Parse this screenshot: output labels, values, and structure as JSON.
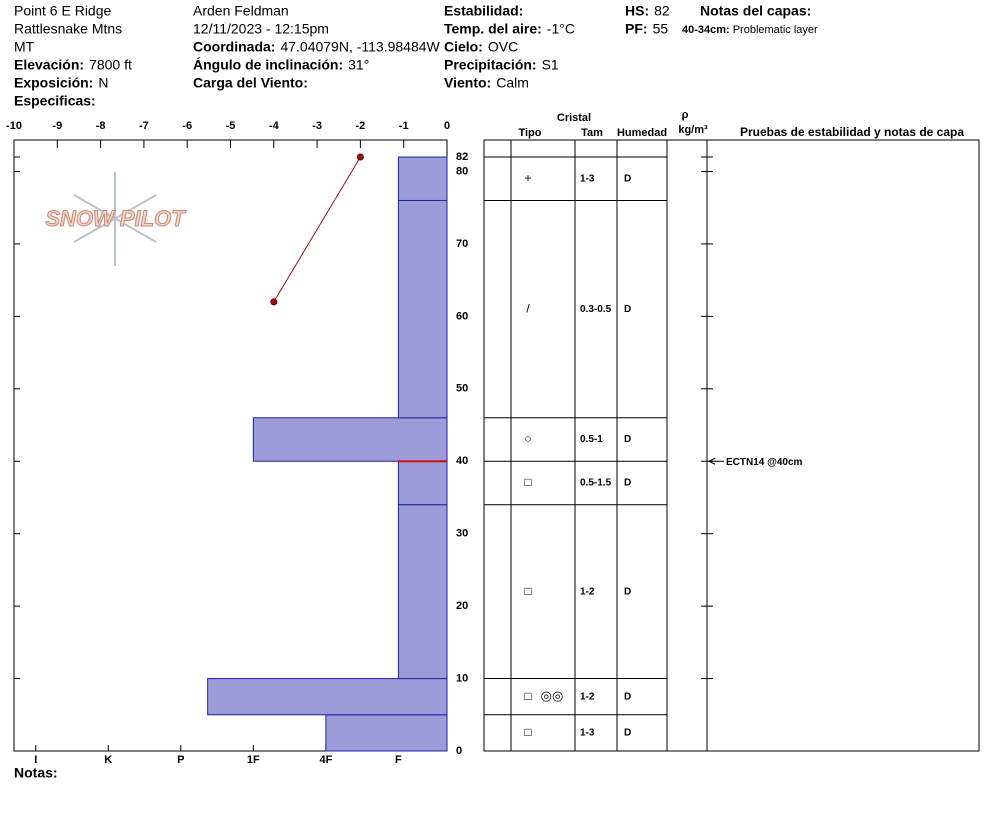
{
  "header": {
    "location": "Point 6 E Ridge",
    "range": "Rattlesnake Mtns",
    "state": "MT",
    "elevation": {
      "label": "Elevación:",
      "value": "7800 ft"
    },
    "aspect": {
      "label": "Exposición:",
      "value": "N"
    },
    "specifics": {
      "label": "Especificas:"
    },
    "observer": "Arden Feldman",
    "datetime": "12/11/2023 - 12:15pm",
    "coordinates": {
      "label": "Coordinada:",
      "value": "47.04079N, -113.98484W"
    },
    "slope": {
      "label": "Ángulo de inclinación:",
      "value": "31°"
    },
    "wind_loading": {
      "label": "Carga del Viento:"
    },
    "stability": {
      "label": "Estabilidad:"
    },
    "air_temp": {
      "label": "Temp. del aire:",
      "value": "-1°C"
    },
    "sky": {
      "label": "Cielo:",
      "value": "OVC"
    },
    "precip": {
      "label": "Precipitación:",
      "value": "S1"
    },
    "wind": {
      "label": "Viento:",
      "value": "Calm"
    },
    "hs": {
      "label": "HS:",
      "value": 82
    },
    "pf": {
      "label": "PF:",
      "value": 55
    },
    "layer_notes": {
      "label": "Notas del capas:",
      "items": [
        {
          "label": "40-34cm:",
          "value": "Problematic layer"
        }
      ]
    }
  },
  "logo": "SNOW PILOT",
  "notes_label": "Notas:",
  "chart_data": {
    "type": "snow-profile",
    "ylim": [
      0,
      82
    ],
    "yticks": [
      0,
      10,
      20,
      30,
      40,
      50,
      60,
      70,
      80,
      82
    ],
    "temperature_xlim": [
      -10,
      0
    ],
    "temperature_xticks": [
      -10,
      -9,
      -8,
      -7,
      -6,
      -5,
      -4,
      -3,
      -2,
      -1,
      0
    ],
    "temperature_profile": {
      "color": "#a01010",
      "depth": [
        82,
        62
      ],
      "values": [
        -2,
        -4
      ]
    },
    "hardness_xlim": [
      0.33,
      6.3
    ],
    "hardness_ticks": [
      {
        "value": 6,
        "label": "I"
      },
      {
        "value": 5,
        "label": "K"
      },
      {
        "value": 4,
        "label": "P"
      },
      {
        "value": 3,
        "label": "1F"
      },
      {
        "value": 2,
        "label": "4F"
      },
      {
        "value": 1,
        "label": "F"
      }
    ],
    "hardness_color": "#9c9cd8",
    "layers": [
      {
        "bottom": 0,
        "top": 5,
        "hardness": 2,
        "grain": "□",
        "size": "1-3",
        "moisture": "D"
      },
      {
        "bottom": 5,
        "top": 10,
        "hardness": 3.63,
        "grain": "□",
        "grain_secondary": "◎◎",
        "size": "1-2",
        "moisture": "D"
      },
      {
        "bottom": 10,
        "top": 34,
        "hardness": 1,
        "grain": "□",
        "size": "1-2",
        "moisture": "D"
      },
      {
        "bottom": 34,
        "top": 40,
        "hardness": 1,
        "grain": "□",
        "size": "0.5-1.5",
        "moisture": "D"
      },
      {
        "bottom": 40,
        "top": 46,
        "hardness": 3,
        "grain": "○",
        "size": "0.5-1",
        "moisture": "D"
      },
      {
        "bottom": 46,
        "top": 76,
        "hardness": 1,
        "grain": "/",
        "size": "0.3-0.5",
        "moisture": "D"
      },
      {
        "bottom": 76,
        "top": 82,
        "hardness": 1,
        "grain": "+",
        "size": "1-3",
        "moisture": "D"
      }
    ],
    "tests": [
      {
        "depth": 40,
        "label": "ECTN14 @40cm"
      }
    ],
    "columns": {
      "crystal": "Cristal",
      "type": "Tipo",
      "size": "Tam",
      "moisture": "Humedad",
      "density": "ρ",
      "density_unit": "kg/m³",
      "tests": "Pruebas de estabilidad y notas de capa"
    }
  }
}
